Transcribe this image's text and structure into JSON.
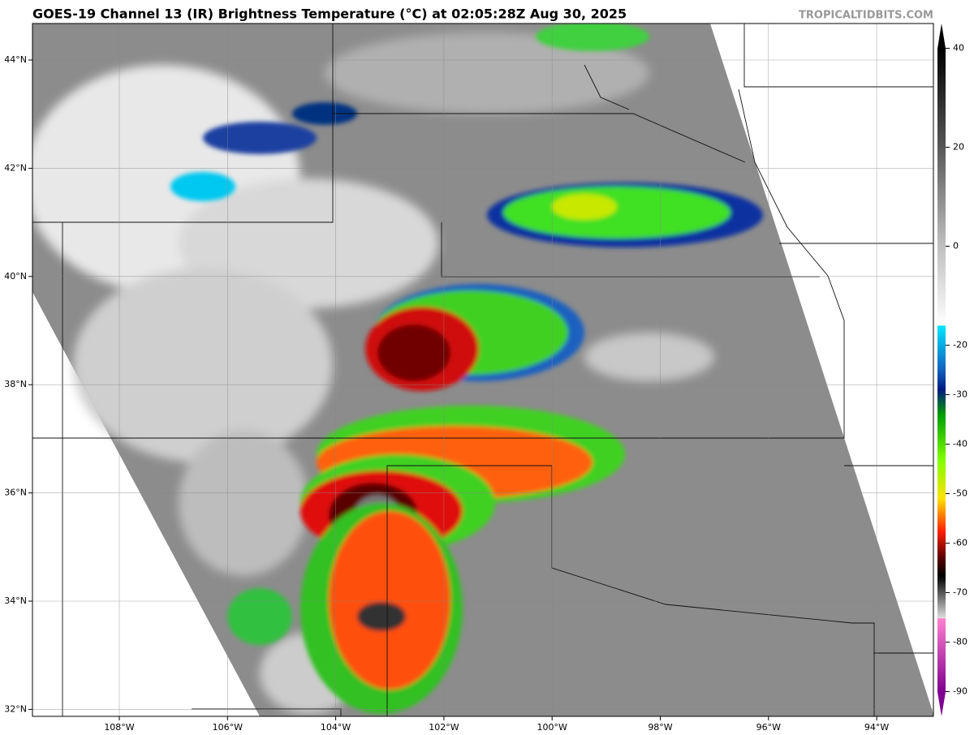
{
  "header": {
    "title": "GOES-19 Channel 13 (IR) Brightness Temperature (°C) at 02:05:28Z Aug 30, 2025",
    "credit": "TROPICALTIDBITS.COM"
  },
  "map": {
    "lat_lines": [
      {
        "value": 44,
        "label": "44°N"
      },
      {
        "value": 42,
        "label": "42°N"
      },
      {
        "value": 40,
        "label": "40°N"
      },
      {
        "value": 38,
        "label": "38°N"
      },
      {
        "value": 36,
        "label": "36°N"
      },
      {
        "value": 34,
        "label": "34°N"
      },
      {
        "value": 32,
        "label": "32°N"
      }
    ],
    "lon_lines": [
      {
        "value": -108,
        "label": "108°W"
      },
      {
        "value": -106,
        "label": "106°W"
      },
      {
        "value": -104,
        "label": "104°W"
      },
      {
        "value": -102,
        "label": "102°W"
      },
      {
        "value": -100,
        "label": "100°W"
      },
      {
        "value": -98,
        "label": "98°W"
      },
      {
        "value": -96,
        "label": "96°W"
      },
      {
        "value": -94,
        "label": "94°W"
      }
    ]
  },
  "colorbar": {
    "lim": [
      -95,
      45
    ],
    "ticks": [
      40,
      20,
      0,
      -20,
      -30,
      -40,
      -50,
      -60,
      -70,
      -80,
      -90
    ]
  }
}
